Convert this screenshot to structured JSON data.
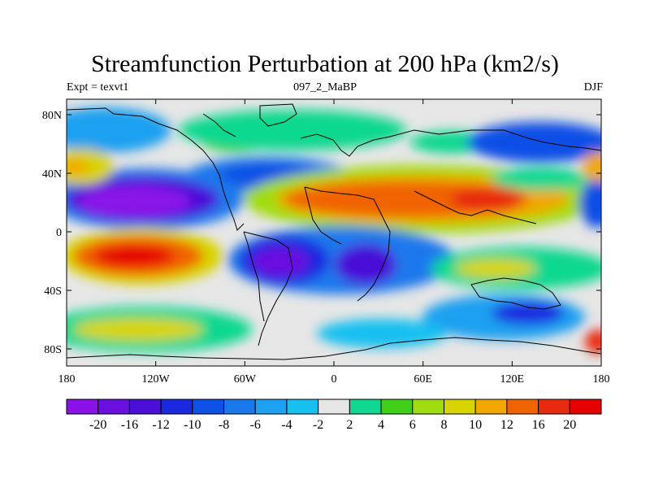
{
  "title": "Streamfunction Perturbation at 200 hPa (km2/s)",
  "subtitle_left": "Expt = texvt1",
  "subtitle_center": "097_2_MaBP",
  "subtitle_right": "DJF",
  "axes": {
    "x_ticks": [
      "180",
      "120W",
      "60W",
      "0",
      "60E",
      "120E",
      "180"
    ],
    "y_ticks": [
      "80N",
      "40N",
      "0",
      "40S",
      "80S"
    ]
  },
  "colorbar": {
    "labels": [
      "-20",
      "-16",
      "-12",
      "-10",
      "-8",
      "-6",
      "-4",
      "-2",
      "2",
      "4",
      "6",
      "8",
      "10",
      "12",
      "16",
      "20"
    ],
    "colors": [
      "#8a12e8",
      "#6a10e0",
      "#4a10d8",
      "#1a28e0",
      "#1050e6",
      "#1a78ec",
      "#1ea0f0",
      "#18c0f0",
      "#e6e6e6",
      "#10d890",
      "#40d018",
      "#a0dc10",
      "#d8d400",
      "#f0a800",
      "#f06400",
      "#e82a10",
      "#e60000"
    ]
  }
}
